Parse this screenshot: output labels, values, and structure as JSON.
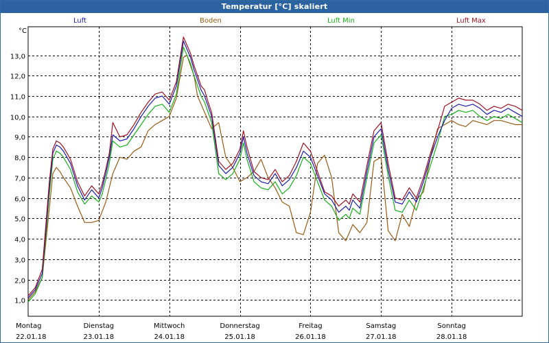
{
  "window": {
    "title": "Temperatur [°C] skaliert"
  },
  "unit_label": "°C",
  "legend": [
    {
      "label": "Luft",
      "color": "#1b1bb0"
    },
    {
      "label": "Boden",
      "color": "#9a5a12"
    },
    {
      "label": "Luft Min",
      "color": "#16b016"
    },
    {
      "label": "Luft Max",
      "color": "#a01020"
    }
  ],
  "chart_data": {
    "type": "line",
    "title": "Temperatur [°C] skaliert",
    "ylabel": "°C",
    "xlabel": "",
    "ylim": [
      0.2,
      14.4
    ],
    "xlim": [
      0,
      7
    ],
    "yticks": [
      1.0,
      2.0,
      3.0,
      4.0,
      5.0,
      6.0,
      7.0,
      8.0,
      9.0,
      10.0,
      11.0,
      12.0,
      13.0
    ],
    "ytick_labels": [
      "1,0",
      "2,0",
      "3,0",
      "4,0",
      "5,0",
      "6,0",
      "7,0",
      "8,0",
      "9,0",
      "10,0",
      "11,0",
      "12,0",
      "13,0"
    ],
    "xticks": [
      {
        "day": "Montag",
        "date": "22.01.18"
      },
      {
        "day": "Dienstag",
        "date": "23.01.18"
      },
      {
        "day": "Mittwoch",
        "date": "24.01.18"
      },
      {
        "day": "Donnerstag",
        "date": "25.01.18"
      },
      {
        "day": "Freitag",
        "date": "26.01.18"
      },
      {
        "day": "Samstag",
        "date": "27.01.18"
      },
      {
        "day": "Sonntag",
        "date": "28.01.18"
      }
    ],
    "grid": true,
    "legend_position": "top",
    "series": [
      {
        "name": "Luft",
        "color": "#1b1bb0",
        "x": [
          0,
          0.1,
          0.2,
          0.3,
          0.35,
          0.4,
          0.45,
          0.5,
          0.55,
          0.6,
          0.7,
          0.8,
          0.9,
          1.0,
          1.05,
          1.1,
          1.15,
          1.2,
          1.3,
          1.4,
          1.5,
          1.6,
          1.7,
          1.8,
          1.9,
          2.0,
          2.1,
          2.2,
          2.3,
          2.35,
          2.4,
          2.45,
          2.5,
          2.55,
          2.6,
          2.7,
          2.8,
          2.9,
          3.0,
          3.05,
          3.1,
          3.2,
          3.3,
          3.4,
          3.5,
          3.6,
          3.7,
          3.8,
          3.9,
          4.0,
          4.1,
          4.2,
          4.3,
          4.4,
          4.5,
          4.55,
          4.6,
          4.7,
          4.8,
          4.9,
          5.0,
          5.1,
          5.2,
          5.3,
          5.4,
          5.5,
          5.6,
          5.7,
          5.8,
          5.9,
          6.0,
          6.1,
          6.2,
          6.3,
          6.4,
          6.5,
          6.6,
          6.7,
          6.8,
          6.9,
          7.0
        ],
        "values": [
          1.1,
          1.5,
          2.3,
          6.5,
          8.2,
          8.6,
          8.5,
          8.3,
          8.0,
          7.7,
          6.6,
          5.9,
          6.4,
          6.0,
          6.5,
          7.2,
          8.0,
          9.1,
          8.8,
          8.9,
          9.4,
          10.0,
          10.5,
          10.9,
          11.0,
          10.6,
          11.5,
          13.7,
          12.9,
          12.3,
          11.8,
          11.3,
          11.0,
          10.5,
          10.0,
          7.6,
          7.2,
          7.5,
          8.2,
          9.0,
          8.2,
          7.1,
          6.8,
          6.7,
          7.2,
          6.6,
          6.9,
          7.5,
          8.3,
          8.0,
          7.1,
          6.2,
          5.9,
          5.3,
          5.6,
          5.4,
          5.9,
          5.5,
          7.3,
          9.0,
          9.4,
          7.4,
          5.8,
          5.7,
          6.3,
          5.8,
          6.8,
          8.0,
          9.0,
          9.8,
          10.4,
          10.6,
          10.5,
          10.6,
          10.4,
          10.1,
          10.3,
          10.2,
          10.4,
          10.2,
          10.0
        ]
      },
      {
        "name": "Boden",
        "color": "#9a5a12",
        "x": [
          0,
          0.1,
          0.2,
          0.3,
          0.35,
          0.4,
          0.45,
          0.5,
          0.6,
          0.7,
          0.8,
          0.9,
          1.0,
          1.1,
          1.2,
          1.3,
          1.4,
          1.5,
          1.6,
          1.7,
          1.8,
          1.9,
          2.0,
          2.1,
          2.2,
          2.25,
          2.3,
          2.35,
          2.4,
          2.5,
          2.6,
          2.7,
          2.8,
          2.9,
          3.0,
          3.1,
          3.2,
          3.3,
          3.4,
          3.5,
          3.6,
          3.7,
          3.8,
          3.9,
          4.0,
          4.1,
          4.2,
          4.3,
          4.4,
          4.5,
          4.6,
          4.7,
          4.8,
          4.9,
          5.0,
          5.1,
          5.2,
          5.3,
          5.4,
          5.5,
          5.6,
          5.7,
          5.8,
          5.9,
          6.0,
          6.1,
          6.2,
          6.3,
          6.4,
          6.5,
          6.6,
          6.7,
          6.8,
          6.9,
          7.0
        ],
        "values": [
          1.0,
          1.4,
          2.1,
          5.5,
          7.2,
          7.5,
          7.3,
          7.0,
          6.5,
          5.6,
          4.8,
          4.8,
          4.9,
          5.8,
          7.2,
          8.0,
          7.9,
          8.3,
          8.5,
          9.3,
          9.6,
          9.8,
          10.0,
          10.9,
          12.9,
          13.0,
          12.5,
          12.0,
          11.0,
          10.2,
          9.4,
          9.7,
          8.0,
          7.5,
          6.8,
          7.0,
          7.3,
          7.9,
          7.0,
          6.5,
          5.8,
          5.6,
          4.3,
          4.2,
          5.3,
          7.7,
          8.1,
          7.0,
          4.3,
          3.9,
          4.7,
          4.3,
          4.8,
          7.8,
          8.0,
          4.4,
          3.9,
          5.2,
          4.6,
          5.9,
          6.3,
          8.0,
          9.4,
          9.6,
          9.8,
          9.6,
          9.5,
          9.8,
          9.7,
          9.6,
          9.8,
          9.8,
          9.7,
          9.6,
          9.6
        ]
      },
      {
        "name": "Luft Min",
        "color": "#16b016",
        "x": [
          0,
          0.1,
          0.2,
          0.3,
          0.35,
          0.4,
          0.45,
          0.5,
          0.55,
          0.6,
          0.7,
          0.8,
          0.9,
          1.0,
          1.05,
          1.1,
          1.15,
          1.2,
          1.3,
          1.4,
          1.5,
          1.6,
          1.7,
          1.8,
          1.9,
          2.0,
          2.1,
          2.2,
          2.3,
          2.35,
          2.4,
          2.45,
          2.5,
          2.55,
          2.6,
          2.7,
          2.8,
          2.9,
          3.0,
          3.05,
          3.1,
          3.2,
          3.3,
          3.4,
          3.5,
          3.6,
          3.7,
          3.8,
          3.9,
          4.0,
          4.1,
          4.2,
          4.3,
          4.4,
          4.5,
          4.55,
          4.6,
          4.7,
          4.8,
          4.9,
          5.0,
          5.1,
          5.2,
          5.3,
          5.4,
          5.5,
          5.6,
          5.7,
          5.8,
          5.9,
          6.0,
          6.1,
          6.2,
          6.3,
          6.4,
          6.5,
          6.6,
          6.7,
          6.8,
          6.9,
          7.0
        ],
        "values": [
          0.9,
          1.3,
          2.1,
          6.2,
          7.9,
          8.3,
          8.2,
          8.0,
          7.7,
          7.4,
          6.3,
          5.7,
          6.1,
          5.8,
          6.2,
          6.9,
          7.7,
          8.8,
          8.5,
          8.6,
          9.1,
          9.6,
          10.1,
          10.5,
          10.6,
          10.2,
          11.1,
          13.4,
          12.6,
          12.0,
          11.5,
          11.0,
          10.7,
          10.2,
          9.7,
          7.2,
          6.9,
          7.2,
          7.9,
          8.7,
          7.9,
          6.8,
          6.5,
          6.4,
          6.8,
          6.2,
          6.5,
          7.1,
          8.0,
          7.7,
          6.8,
          5.9,
          5.6,
          4.9,
          5.2,
          5.0,
          5.5,
          5.2,
          7.0,
          8.7,
          9.1,
          7.1,
          5.4,
          5.3,
          5.9,
          5.4,
          6.5,
          7.6,
          8.7,
          10.0,
          10.1,
          10.3,
          10.2,
          10.3,
          10.0,
          9.8,
          10.0,
          9.9,
          10.1,
          9.9,
          9.7
        ]
      },
      {
        "name": "Luft Max",
        "color": "#a01020",
        "x": [
          0,
          0.1,
          0.2,
          0.3,
          0.35,
          0.4,
          0.45,
          0.5,
          0.55,
          0.6,
          0.7,
          0.8,
          0.9,
          1.0,
          1.05,
          1.1,
          1.15,
          1.2,
          1.3,
          1.4,
          1.5,
          1.6,
          1.7,
          1.8,
          1.9,
          2.0,
          2.1,
          2.2,
          2.3,
          2.35,
          2.4,
          2.45,
          2.5,
          2.55,
          2.6,
          2.7,
          2.8,
          2.9,
          3.0,
          3.05,
          3.1,
          3.2,
          3.3,
          3.4,
          3.5,
          3.6,
          3.7,
          3.8,
          3.9,
          4.0,
          4.1,
          4.2,
          4.3,
          4.4,
          4.5,
          4.55,
          4.6,
          4.7,
          4.8,
          4.9,
          5.0,
          5.1,
          5.2,
          5.3,
          5.4,
          5.5,
          5.6,
          5.7,
          5.8,
          5.9,
          6.0,
          6.1,
          6.2,
          6.3,
          6.4,
          6.5,
          6.6,
          6.7,
          6.8,
          6.9,
          7.0
        ],
        "values": [
          1.2,
          1.6,
          2.5,
          6.8,
          8.4,
          8.8,
          8.7,
          8.5,
          8.2,
          7.9,
          6.8,
          6.1,
          6.6,
          6.2,
          6.7,
          7.4,
          8.2,
          9.7,
          9.0,
          9.1,
          9.6,
          10.2,
          10.7,
          11.1,
          11.2,
          10.8,
          11.7,
          13.9,
          13.1,
          12.5,
          12.0,
          11.5,
          11.3,
          10.7,
          10.2,
          7.8,
          7.4,
          7.7,
          8.4,
          9.3,
          8.5,
          7.3,
          7.0,
          6.9,
          7.4,
          6.8,
          7.1,
          7.8,
          8.7,
          8.3,
          7.3,
          6.3,
          6.1,
          5.6,
          5.9,
          5.7,
          6.2,
          5.8,
          7.6,
          9.3,
          9.7,
          7.7,
          6.0,
          5.9,
          6.5,
          6.0,
          7.0,
          8.2,
          9.3,
          10.5,
          10.7,
          10.9,
          10.8,
          10.8,
          10.6,
          10.3,
          10.5,
          10.4,
          10.6,
          10.5,
          10.3
        ]
      }
    ]
  }
}
